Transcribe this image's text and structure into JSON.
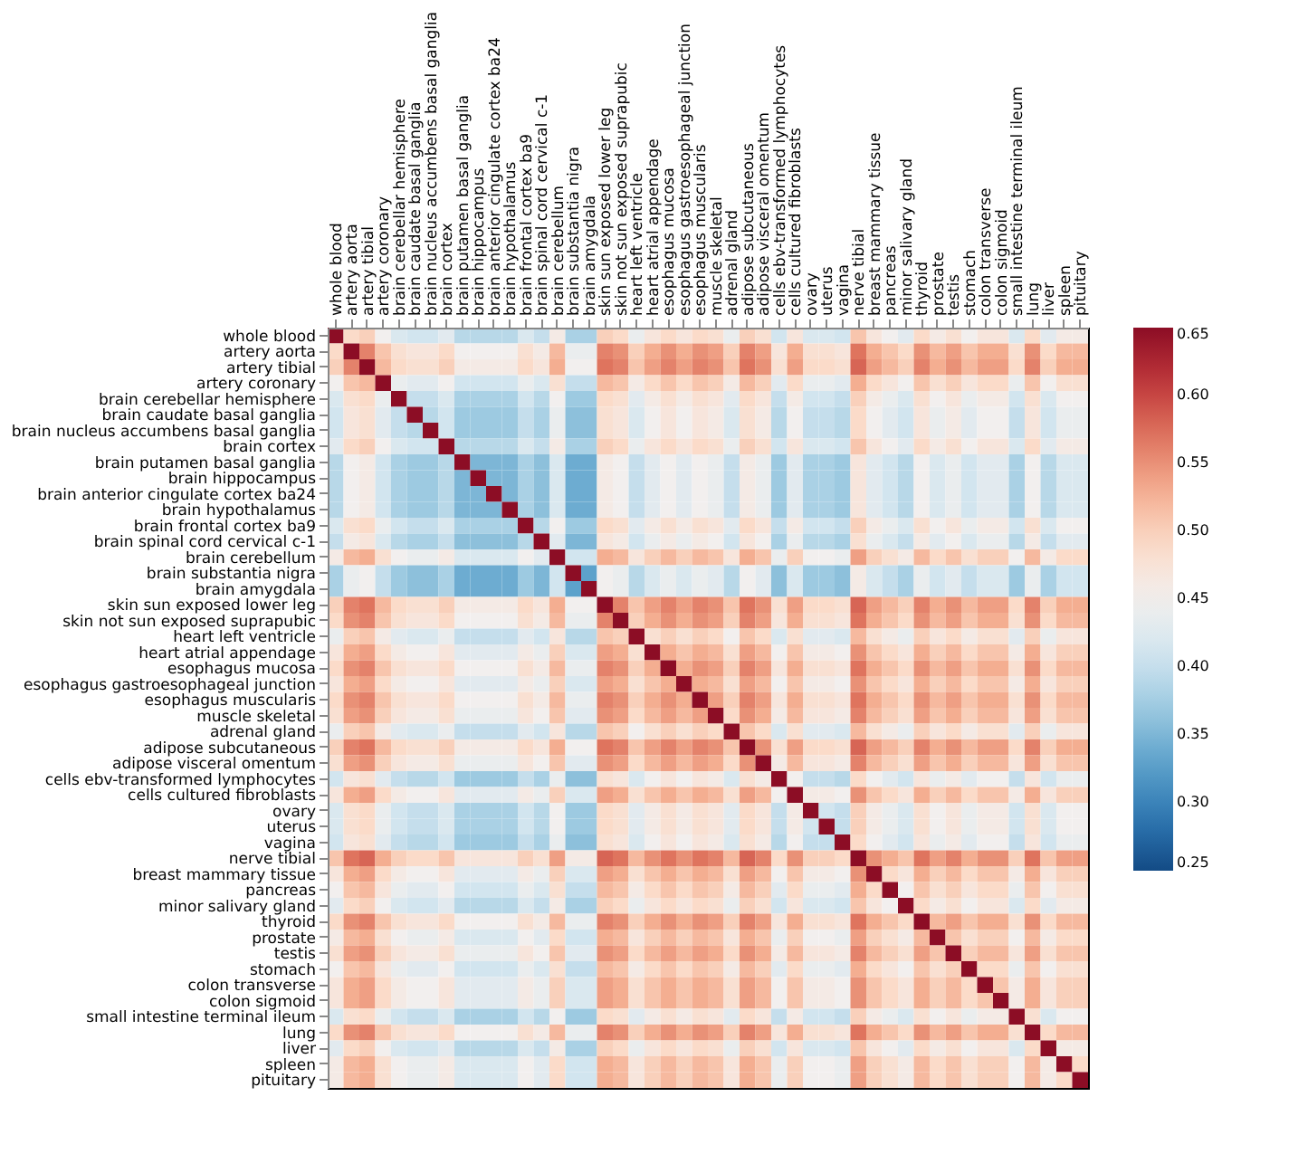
{
  "chart_data": {
    "type": "heatmap",
    "categories": [
      "whole blood",
      "artery aorta",
      "artery tibial",
      "artery coronary",
      "brain cerebellar hemisphere",
      "brain caudate basal ganglia",
      "brain nucleus accumbens basal ganglia",
      "brain cortex",
      "brain putamen basal ganglia",
      "brain hippocampus",
      "brain anterior cingulate cortex ba24",
      "brain hypothalamus",
      "brain frontal cortex ba9",
      "brain spinal cord cervical c-1",
      "brain cerebellum",
      "brain substantia nigra",
      "brain amygdala",
      "skin sun exposed lower leg",
      "skin not sun exposed suprapubic",
      "heart left ventricle",
      "heart atrial appendage",
      "esophagus mucosa",
      "esophagus gastroesophageal junction",
      "esophagus muscularis",
      "muscle skeletal",
      "adrenal gland",
      "adipose subcutaneous",
      "adipose visceral omentum",
      "cells ebv-transformed lymphocytes",
      "cells cultured fibroblasts",
      "ovary",
      "uterus",
      "vagina",
      "nerve tibial",
      "breast mammary tissue",
      "pancreas",
      "minor salivary gland",
      "thyroid",
      "prostate",
      "testis",
      "stomach",
      "colon transverse",
      "colon sigmoid",
      "small intestine terminal ileum",
      "lung",
      "liver",
      "spleen",
      "pituitary"
    ],
    "y_categories": [
      "whole blood",
      "artery aorta",
      "artery tibial",
      "artery coronary",
      "brain cerebellar hemisphere",
      "brain caudate basal ganglia",
      "brain nucleus accumbens basal ganglia",
      "brain cortex",
      "brain putamen basal ganglia",
      "brain hippocampus",
      "brain anterior cingulate cortex ba24",
      "brain hypothalamus",
      "brain frontal cortex ba9",
      "brain spinal cord cervical c-1",
      "brain cerebellum",
      "brain substantia nigra",
      "brain amygdala",
      "skin sun exposed lower leg",
      "skin not sun exposed suprapubic",
      "heart left ventricle",
      "heart atrial appendage",
      "esophagus mucosa",
      "esophagus gastroesophageal junction",
      "esophagus muscularis",
      "muscle skeletal",
      "adrenal gland",
      "adipose subcutaneous",
      "adipose visceral omentum",
      "cells ebv-transformed lymphocytes",
      "cells cultured fibroblasts",
      "ovary",
      "uterus",
      "vagina",
      "nerve tibial",
      "breast mammary tissue",
      "pancreas",
      "minor salivary gland",
      "thyroid",
      "prostate",
      "testis",
      "stomach",
      "colon transverse",
      "colon sigmoid",
      "small intestine terminal ileum",
      "lung",
      "liver",
      "spleen",
      "pituitary"
    ],
    "clim": [
      0.25,
      0.65
    ],
    "cticks": [
      0.25,
      {
        "value": 0.3,
        "label": "0.30"
      },
      0.35,
      {
        "value": 0.4,
        "label": "0.40"
      },
      0.45,
      {
        "value": 0.5,
        "label": "0.50"
      },
      0.55,
      {
        "value": 0.6,
        "label": "0.60"
      },
      0.65
    ],
    "cells": [
      [
        0.65,
        0.49,
        0.5,
        0.45,
        0.42,
        0.41,
        0.41,
        0.43,
        0.39,
        0.39,
        0.39,
        0.39,
        0.42,
        0.4,
        0.46,
        0.38,
        0.38,
        0.5,
        0.49,
        0.44,
        0.47,
        0.49,
        0.47,
        0.49,
        0.48,
        0.44,
        0.5,
        0.48,
        0.41,
        0.47,
        0.42,
        0.42,
        0.41,
        0.51,
        0.47,
        0.45,
        0.43,
        0.49,
        0.46,
        0.48,
        0.45,
        0.47,
        0.47,
        0.42,
        0.49,
        0.43,
        0.46,
        0.46
      ],
      [
        0.49,
        0.65,
        0.56,
        0.51,
        0.48,
        0.47,
        0.47,
        0.49,
        0.45,
        0.45,
        0.45,
        0.45,
        0.48,
        0.46,
        0.52,
        0.44,
        0.44,
        0.56,
        0.55,
        0.5,
        0.53,
        0.55,
        0.53,
        0.55,
        0.54,
        0.5,
        0.56,
        0.54,
        0.47,
        0.53,
        0.48,
        0.48,
        0.47,
        0.57,
        0.53,
        0.51,
        0.49,
        0.55,
        0.52,
        0.54,
        0.51,
        0.53,
        0.53,
        0.48,
        0.55,
        0.49,
        0.52,
        0.52
      ],
      [
        0.5,
        0.56,
        0.65,
        0.52,
        0.49,
        0.48,
        0.48,
        0.5,
        0.46,
        0.46,
        0.46,
        0.46,
        0.49,
        0.47,
        0.53,
        0.45,
        0.45,
        0.57,
        0.56,
        0.51,
        0.54,
        0.56,
        0.54,
        0.56,
        0.55,
        0.51,
        0.57,
        0.55,
        0.48,
        0.54,
        0.49,
        0.49,
        0.48,
        0.58,
        0.54,
        0.52,
        0.5,
        0.56,
        0.53,
        0.55,
        0.52,
        0.54,
        0.54,
        0.49,
        0.56,
        0.5,
        0.53,
        0.53
      ],
      [
        0.45,
        0.51,
        0.52,
        0.65,
        0.44,
        0.43,
        0.43,
        0.45,
        0.41,
        0.41,
        0.41,
        0.41,
        0.44,
        0.42,
        0.48,
        0.4,
        0.4,
        0.52,
        0.51,
        0.46,
        0.49,
        0.51,
        0.49,
        0.51,
        0.5,
        0.46,
        0.52,
        0.5,
        0.43,
        0.49,
        0.44,
        0.44,
        0.43,
        0.53,
        0.49,
        0.47,
        0.45,
        0.51,
        0.48,
        0.5,
        0.47,
        0.49,
        0.49,
        0.44,
        0.51,
        0.45,
        0.48,
        0.48
      ],
      [
        0.42,
        0.48,
        0.49,
        0.44,
        0.65,
        0.4,
        0.4,
        0.42,
        0.38,
        0.38,
        0.38,
        0.38,
        0.41,
        0.39,
        0.45,
        0.37,
        0.37,
        0.49,
        0.48,
        0.43,
        0.46,
        0.48,
        0.46,
        0.48,
        0.47,
        0.43,
        0.49,
        0.47,
        0.4,
        0.46,
        0.41,
        0.41,
        0.4,
        0.5,
        0.46,
        0.44,
        0.42,
        0.48,
        0.45,
        0.47,
        0.44,
        0.46,
        0.46,
        0.41,
        0.48,
        0.42,
        0.45,
        0.45
      ],
      [
        0.41,
        0.47,
        0.48,
        0.43,
        0.4,
        0.65,
        0.39,
        0.41,
        0.37,
        0.37,
        0.37,
        0.37,
        0.4,
        0.38,
        0.44,
        0.36,
        0.36,
        0.48,
        0.47,
        0.42,
        0.45,
        0.47,
        0.45,
        0.47,
        0.46,
        0.42,
        0.48,
        0.46,
        0.39,
        0.45,
        0.4,
        0.4,
        0.39,
        0.49,
        0.45,
        0.43,
        0.41,
        0.47,
        0.44,
        0.46,
        0.43,
        0.45,
        0.45,
        0.4,
        0.47,
        0.41,
        0.44,
        0.44
      ],
      [
        0.41,
        0.47,
        0.48,
        0.43,
        0.4,
        0.39,
        0.65,
        0.41,
        0.37,
        0.37,
        0.37,
        0.37,
        0.4,
        0.38,
        0.44,
        0.36,
        0.36,
        0.48,
        0.47,
        0.42,
        0.45,
        0.47,
        0.45,
        0.47,
        0.46,
        0.42,
        0.48,
        0.46,
        0.39,
        0.45,
        0.4,
        0.4,
        0.39,
        0.49,
        0.45,
        0.43,
        0.41,
        0.47,
        0.44,
        0.46,
        0.43,
        0.45,
        0.45,
        0.4,
        0.47,
        0.41,
        0.44,
        0.44
      ],
      [
        0.43,
        0.49,
        0.5,
        0.45,
        0.42,
        0.41,
        0.41,
        0.65,
        0.39,
        0.39,
        0.39,
        0.39,
        0.42,
        0.4,
        0.46,
        0.38,
        0.38,
        0.5,
        0.49,
        0.44,
        0.47,
        0.49,
        0.47,
        0.49,
        0.48,
        0.44,
        0.5,
        0.48,
        0.41,
        0.47,
        0.42,
        0.42,
        0.41,
        0.51,
        0.47,
        0.45,
        0.43,
        0.49,
        0.46,
        0.48,
        0.45,
        0.47,
        0.47,
        0.42,
        0.49,
        0.43,
        0.46,
        0.46
      ],
      [
        0.39,
        0.45,
        0.46,
        0.41,
        0.38,
        0.37,
        0.37,
        0.39,
        0.65,
        0.35,
        0.35,
        0.35,
        0.38,
        0.36,
        0.42,
        0.34,
        0.34,
        0.46,
        0.45,
        0.4,
        0.43,
        0.45,
        0.43,
        0.45,
        0.44,
        0.4,
        0.46,
        0.44,
        0.37,
        0.43,
        0.38,
        0.38,
        0.37,
        0.47,
        0.43,
        0.41,
        0.39,
        0.45,
        0.42,
        0.44,
        0.41,
        0.43,
        0.43,
        0.38,
        0.45,
        0.39,
        0.42,
        0.42
      ],
      [
        0.39,
        0.45,
        0.46,
        0.41,
        0.38,
        0.37,
        0.37,
        0.39,
        0.35,
        0.65,
        0.35,
        0.35,
        0.38,
        0.36,
        0.42,
        0.34,
        0.34,
        0.46,
        0.45,
        0.4,
        0.43,
        0.45,
        0.43,
        0.45,
        0.44,
        0.4,
        0.46,
        0.44,
        0.37,
        0.43,
        0.38,
        0.38,
        0.37,
        0.47,
        0.43,
        0.41,
        0.39,
        0.45,
        0.42,
        0.44,
        0.41,
        0.43,
        0.43,
        0.38,
        0.45,
        0.39,
        0.42,
        0.42
      ],
      [
        0.39,
        0.45,
        0.46,
        0.41,
        0.38,
        0.37,
        0.37,
        0.39,
        0.35,
        0.35,
        0.65,
        0.35,
        0.38,
        0.36,
        0.42,
        0.34,
        0.34,
        0.46,
        0.45,
        0.4,
        0.43,
        0.45,
        0.43,
        0.45,
        0.44,
        0.4,
        0.46,
        0.44,
        0.37,
        0.43,
        0.38,
        0.38,
        0.37,
        0.47,
        0.43,
        0.41,
        0.39,
        0.45,
        0.42,
        0.44,
        0.41,
        0.43,
        0.43,
        0.38,
        0.45,
        0.39,
        0.42,
        0.42
      ],
      [
        0.39,
        0.45,
        0.46,
        0.41,
        0.38,
        0.37,
        0.37,
        0.39,
        0.35,
        0.35,
        0.35,
        0.65,
        0.38,
        0.36,
        0.42,
        0.34,
        0.34,
        0.46,
        0.45,
        0.4,
        0.43,
        0.45,
        0.43,
        0.45,
        0.44,
        0.4,
        0.46,
        0.44,
        0.37,
        0.43,
        0.38,
        0.38,
        0.37,
        0.47,
        0.43,
        0.41,
        0.39,
        0.45,
        0.42,
        0.44,
        0.41,
        0.43,
        0.43,
        0.38,
        0.45,
        0.39,
        0.42,
        0.42
      ],
      [
        0.42,
        0.48,
        0.49,
        0.44,
        0.41,
        0.4,
        0.4,
        0.42,
        0.38,
        0.38,
        0.38,
        0.38,
        0.65,
        0.39,
        0.45,
        0.37,
        0.37,
        0.49,
        0.48,
        0.43,
        0.46,
        0.48,
        0.46,
        0.48,
        0.47,
        0.43,
        0.49,
        0.47,
        0.4,
        0.46,
        0.41,
        0.41,
        0.4,
        0.5,
        0.46,
        0.44,
        0.42,
        0.48,
        0.45,
        0.47,
        0.44,
        0.46,
        0.46,
        0.41,
        0.48,
        0.42,
        0.45,
        0.45
      ],
      [
        0.4,
        0.46,
        0.47,
        0.42,
        0.39,
        0.38,
        0.38,
        0.4,
        0.36,
        0.36,
        0.36,
        0.36,
        0.39,
        0.65,
        0.43,
        0.35,
        0.35,
        0.47,
        0.46,
        0.41,
        0.44,
        0.46,
        0.44,
        0.46,
        0.45,
        0.41,
        0.47,
        0.45,
        0.38,
        0.44,
        0.39,
        0.39,
        0.38,
        0.48,
        0.44,
        0.42,
        0.4,
        0.46,
        0.43,
        0.45,
        0.42,
        0.44,
        0.44,
        0.39,
        0.46,
        0.4,
        0.43,
        0.43
      ],
      [
        0.46,
        0.52,
        0.53,
        0.48,
        0.45,
        0.44,
        0.44,
        0.46,
        0.42,
        0.42,
        0.42,
        0.42,
        0.45,
        0.43,
        0.65,
        0.41,
        0.41,
        0.53,
        0.52,
        0.47,
        0.5,
        0.52,
        0.5,
        0.52,
        0.51,
        0.47,
        0.53,
        0.51,
        0.44,
        0.5,
        0.45,
        0.45,
        0.44,
        0.54,
        0.5,
        0.48,
        0.46,
        0.52,
        0.49,
        0.51,
        0.48,
        0.5,
        0.5,
        0.45,
        0.52,
        0.46,
        0.49,
        0.49
      ],
      [
        0.38,
        0.44,
        0.45,
        0.4,
        0.37,
        0.36,
        0.36,
        0.38,
        0.34,
        0.34,
        0.34,
        0.34,
        0.37,
        0.35,
        0.41,
        0.65,
        0.33,
        0.45,
        0.44,
        0.39,
        0.42,
        0.44,
        0.42,
        0.44,
        0.43,
        0.39,
        0.45,
        0.43,
        0.36,
        0.42,
        0.37,
        0.37,
        0.36,
        0.46,
        0.42,
        0.4,
        0.38,
        0.44,
        0.41,
        0.43,
        0.4,
        0.42,
        0.42,
        0.37,
        0.44,
        0.38,
        0.41,
        0.41
      ],
      [
        0.38,
        0.44,
        0.45,
        0.4,
        0.37,
        0.36,
        0.36,
        0.38,
        0.34,
        0.34,
        0.34,
        0.34,
        0.37,
        0.35,
        0.41,
        0.33,
        0.65,
        0.45,
        0.44,
        0.39,
        0.42,
        0.44,
        0.42,
        0.44,
        0.43,
        0.39,
        0.45,
        0.43,
        0.36,
        0.42,
        0.37,
        0.37,
        0.36,
        0.46,
        0.42,
        0.4,
        0.38,
        0.44,
        0.41,
        0.43,
        0.4,
        0.42,
        0.42,
        0.37,
        0.44,
        0.38,
        0.41,
        0.41
      ],
      [
        0.5,
        0.56,
        0.57,
        0.52,
        0.49,
        0.48,
        0.48,
        0.5,
        0.46,
        0.46,
        0.46,
        0.46,
        0.49,
        0.47,
        0.53,
        0.45,
        0.45,
        0.65,
        0.56,
        0.51,
        0.54,
        0.56,
        0.54,
        0.56,
        0.55,
        0.51,
        0.57,
        0.55,
        0.48,
        0.54,
        0.49,
        0.49,
        0.48,
        0.58,
        0.54,
        0.52,
        0.5,
        0.56,
        0.53,
        0.55,
        0.52,
        0.54,
        0.54,
        0.49,
        0.56,
        0.5,
        0.53,
        0.53
      ],
      [
        0.49,
        0.55,
        0.56,
        0.51,
        0.48,
        0.47,
        0.47,
        0.49,
        0.45,
        0.45,
        0.45,
        0.45,
        0.48,
        0.46,
        0.52,
        0.44,
        0.44,
        0.56,
        0.65,
        0.5,
        0.53,
        0.55,
        0.53,
        0.55,
        0.54,
        0.5,
        0.56,
        0.54,
        0.47,
        0.53,
        0.48,
        0.48,
        0.47,
        0.57,
        0.53,
        0.51,
        0.49,
        0.55,
        0.52,
        0.54,
        0.51,
        0.53,
        0.53,
        0.48,
        0.55,
        0.49,
        0.52,
        0.52
      ],
      [
        0.44,
        0.5,
        0.51,
        0.46,
        0.43,
        0.42,
        0.42,
        0.44,
        0.4,
        0.4,
        0.4,
        0.4,
        0.43,
        0.41,
        0.47,
        0.39,
        0.39,
        0.51,
        0.5,
        0.65,
        0.48,
        0.5,
        0.48,
        0.5,
        0.49,
        0.45,
        0.51,
        0.49,
        0.42,
        0.48,
        0.43,
        0.43,
        0.42,
        0.52,
        0.48,
        0.46,
        0.44,
        0.5,
        0.47,
        0.49,
        0.46,
        0.48,
        0.48,
        0.43,
        0.5,
        0.44,
        0.47,
        0.47
      ],
      [
        0.47,
        0.53,
        0.54,
        0.49,
        0.46,
        0.45,
        0.45,
        0.47,
        0.43,
        0.43,
        0.43,
        0.43,
        0.46,
        0.44,
        0.5,
        0.42,
        0.42,
        0.54,
        0.53,
        0.48,
        0.65,
        0.53,
        0.51,
        0.53,
        0.52,
        0.48,
        0.54,
        0.52,
        0.45,
        0.51,
        0.46,
        0.46,
        0.45,
        0.55,
        0.51,
        0.49,
        0.47,
        0.53,
        0.5,
        0.52,
        0.49,
        0.51,
        0.51,
        0.46,
        0.53,
        0.47,
        0.5,
        0.5
      ],
      [
        0.49,
        0.55,
        0.56,
        0.51,
        0.48,
        0.47,
        0.47,
        0.49,
        0.45,
        0.45,
        0.45,
        0.45,
        0.48,
        0.46,
        0.52,
        0.44,
        0.44,
        0.56,
        0.55,
        0.5,
        0.53,
        0.65,
        0.53,
        0.55,
        0.54,
        0.5,
        0.56,
        0.54,
        0.47,
        0.53,
        0.48,
        0.48,
        0.47,
        0.57,
        0.53,
        0.51,
        0.49,
        0.55,
        0.52,
        0.54,
        0.51,
        0.53,
        0.53,
        0.48,
        0.55,
        0.49,
        0.52,
        0.52
      ],
      [
        0.47,
        0.53,
        0.54,
        0.49,
        0.46,
        0.45,
        0.45,
        0.47,
        0.43,
        0.43,
        0.43,
        0.43,
        0.46,
        0.44,
        0.5,
        0.42,
        0.42,
        0.54,
        0.53,
        0.48,
        0.51,
        0.53,
        0.65,
        0.53,
        0.52,
        0.48,
        0.54,
        0.52,
        0.45,
        0.51,
        0.46,
        0.46,
        0.45,
        0.55,
        0.51,
        0.49,
        0.47,
        0.53,
        0.5,
        0.52,
        0.49,
        0.51,
        0.51,
        0.46,
        0.53,
        0.47,
        0.5,
        0.5
      ],
      [
        0.49,
        0.55,
        0.56,
        0.51,
        0.48,
        0.47,
        0.47,
        0.49,
        0.45,
        0.45,
        0.45,
        0.45,
        0.48,
        0.46,
        0.52,
        0.44,
        0.44,
        0.56,
        0.55,
        0.5,
        0.53,
        0.55,
        0.53,
        0.65,
        0.54,
        0.5,
        0.56,
        0.54,
        0.47,
        0.53,
        0.48,
        0.48,
        0.47,
        0.57,
        0.53,
        0.51,
        0.49,
        0.55,
        0.52,
        0.54,
        0.51,
        0.53,
        0.53,
        0.48,
        0.55,
        0.49,
        0.52,
        0.52
      ],
      [
        0.48,
        0.54,
        0.55,
        0.5,
        0.47,
        0.46,
        0.46,
        0.48,
        0.44,
        0.44,
        0.44,
        0.44,
        0.47,
        0.45,
        0.51,
        0.43,
        0.43,
        0.55,
        0.54,
        0.49,
        0.52,
        0.54,
        0.52,
        0.54,
        0.65,
        0.49,
        0.55,
        0.53,
        0.46,
        0.52,
        0.47,
        0.47,
        0.46,
        0.56,
        0.52,
        0.5,
        0.48,
        0.54,
        0.51,
        0.53,
        0.5,
        0.52,
        0.52,
        0.47,
        0.54,
        0.48,
        0.51,
        0.51
      ],
      [
        0.44,
        0.5,
        0.51,
        0.46,
        0.43,
        0.42,
        0.42,
        0.44,
        0.4,
        0.4,
        0.4,
        0.4,
        0.43,
        0.41,
        0.47,
        0.39,
        0.39,
        0.51,
        0.5,
        0.45,
        0.48,
        0.5,
        0.48,
        0.5,
        0.49,
        0.65,
        0.51,
        0.49,
        0.42,
        0.48,
        0.43,
        0.43,
        0.42,
        0.52,
        0.48,
        0.46,
        0.44,
        0.5,
        0.47,
        0.49,
        0.46,
        0.48,
        0.48,
        0.43,
        0.5,
        0.44,
        0.47,
        0.47
      ],
      [
        0.5,
        0.56,
        0.57,
        0.52,
        0.49,
        0.48,
        0.48,
        0.5,
        0.46,
        0.46,
        0.46,
        0.46,
        0.49,
        0.47,
        0.53,
        0.45,
        0.45,
        0.57,
        0.56,
        0.51,
        0.54,
        0.56,
        0.54,
        0.56,
        0.55,
        0.51,
        0.65,
        0.55,
        0.48,
        0.54,
        0.49,
        0.49,
        0.48,
        0.58,
        0.54,
        0.52,
        0.5,
        0.56,
        0.53,
        0.55,
        0.52,
        0.54,
        0.54,
        0.49,
        0.56,
        0.5,
        0.53,
        0.53
      ],
      [
        0.48,
        0.54,
        0.55,
        0.5,
        0.47,
        0.46,
        0.46,
        0.48,
        0.44,
        0.44,
        0.44,
        0.44,
        0.47,
        0.45,
        0.51,
        0.43,
        0.43,
        0.55,
        0.54,
        0.49,
        0.52,
        0.54,
        0.52,
        0.54,
        0.53,
        0.49,
        0.55,
        0.65,
        0.46,
        0.52,
        0.47,
        0.47,
        0.46,
        0.56,
        0.52,
        0.5,
        0.48,
        0.54,
        0.51,
        0.53,
        0.5,
        0.52,
        0.52,
        0.47,
        0.54,
        0.48,
        0.51,
        0.51
      ],
      [
        0.41,
        0.47,
        0.48,
        0.43,
        0.4,
        0.39,
        0.39,
        0.41,
        0.37,
        0.37,
        0.37,
        0.37,
        0.4,
        0.38,
        0.44,
        0.36,
        0.36,
        0.48,
        0.47,
        0.42,
        0.45,
        0.47,
        0.45,
        0.47,
        0.46,
        0.42,
        0.48,
        0.46,
        0.65,
        0.45,
        0.4,
        0.4,
        0.39,
        0.49,
        0.45,
        0.43,
        0.41,
        0.47,
        0.44,
        0.46,
        0.43,
        0.45,
        0.45,
        0.4,
        0.47,
        0.41,
        0.44,
        0.44
      ],
      [
        0.47,
        0.53,
        0.54,
        0.49,
        0.46,
        0.45,
        0.45,
        0.47,
        0.43,
        0.43,
        0.43,
        0.43,
        0.46,
        0.44,
        0.5,
        0.42,
        0.42,
        0.54,
        0.53,
        0.48,
        0.51,
        0.53,
        0.51,
        0.53,
        0.52,
        0.48,
        0.54,
        0.52,
        0.45,
        0.65,
        0.46,
        0.46,
        0.45,
        0.55,
        0.51,
        0.49,
        0.47,
        0.53,
        0.5,
        0.52,
        0.49,
        0.51,
        0.51,
        0.46,
        0.53,
        0.47,
        0.5,
        0.5
      ],
      [
        0.42,
        0.48,
        0.49,
        0.44,
        0.41,
        0.4,
        0.4,
        0.42,
        0.38,
        0.38,
        0.38,
        0.38,
        0.41,
        0.39,
        0.45,
        0.37,
        0.37,
        0.49,
        0.48,
        0.43,
        0.46,
        0.48,
        0.46,
        0.48,
        0.47,
        0.43,
        0.49,
        0.47,
        0.4,
        0.46,
        0.65,
        0.41,
        0.4,
        0.5,
        0.46,
        0.44,
        0.42,
        0.48,
        0.45,
        0.47,
        0.44,
        0.46,
        0.46,
        0.41,
        0.48,
        0.42,
        0.45,
        0.45
      ],
      [
        0.42,
        0.48,
        0.49,
        0.44,
        0.41,
        0.4,
        0.4,
        0.42,
        0.38,
        0.38,
        0.38,
        0.38,
        0.41,
        0.39,
        0.45,
        0.37,
        0.37,
        0.49,
        0.48,
        0.43,
        0.46,
        0.48,
        0.46,
        0.48,
        0.47,
        0.43,
        0.49,
        0.47,
        0.4,
        0.46,
        0.41,
        0.65,
        0.4,
        0.5,
        0.46,
        0.44,
        0.42,
        0.48,
        0.45,
        0.47,
        0.44,
        0.46,
        0.46,
        0.41,
        0.48,
        0.42,
        0.45,
        0.45
      ],
      [
        0.41,
        0.47,
        0.48,
        0.43,
        0.4,
        0.39,
        0.39,
        0.41,
        0.37,
        0.37,
        0.37,
        0.37,
        0.4,
        0.38,
        0.44,
        0.36,
        0.36,
        0.48,
        0.47,
        0.42,
        0.45,
        0.47,
        0.45,
        0.47,
        0.46,
        0.42,
        0.48,
        0.46,
        0.39,
        0.45,
        0.4,
        0.4,
        0.65,
        0.49,
        0.45,
        0.43,
        0.41,
        0.47,
        0.44,
        0.46,
        0.43,
        0.45,
        0.45,
        0.4,
        0.47,
        0.41,
        0.44,
        0.44
      ],
      [
        0.51,
        0.57,
        0.58,
        0.53,
        0.5,
        0.49,
        0.49,
        0.51,
        0.47,
        0.47,
        0.47,
        0.47,
        0.5,
        0.48,
        0.54,
        0.46,
        0.46,
        0.58,
        0.57,
        0.52,
        0.55,
        0.57,
        0.55,
        0.57,
        0.56,
        0.52,
        0.58,
        0.56,
        0.49,
        0.55,
        0.5,
        0.5,
        0.49,
        0.65,
        0.55,
        0.53,
        0.51,
        0.57,
        0.54,
        0.56,
        0.53,
        0.55,
        0.55,
        0.5,
        0.57,
        0.51,
        0.54,
        0.54
      ],
      [
        0.47,
        0.53,
        0.54,
        0.49,
        0.46,
        0.45,
        0.45,
        0.47,
        0.43,
        0.43,
        0.43,
        0.43,
        0.46,
        0.44,
        0.5,
        0.42,
        0.42,
        0.54,
        0.53,
        0.48,
        0.51,
        0.53,
        0.51,
        0.53,
        0.52,
        0.48,
        0.54,
        0.52,
        0.45,
        0.51,
        0.46,
        0.46,
        0.45,
        0.55,
        0.65,
        0.49,
        0.47,
        0.53,
        0.5,
        0.52,
        0.49,
        0.51,
        0.51,
        0.46,
        0.53,
        0.47,
        0.5,
        0.5
      ],
      [
        0.45,
        0.51,
        0.52,
        0.47,
        0.44,
        0.43,
        0.43,
        0.45,
        0.41,
        0.41,
        0.41,
        0.41,
        0.44,
        0.42,
        0.48,
        0.4,
        0.4,
        0.52,
        0.51,
        0.46,
        0.49,
        0.51,
        0.49,
        0.51,
        0.5,
        0.46,
        0.52,
        0.5,
        0.43,
        0.49,
        0.44,
        0.44,
        0.43,
        0.53,
        0.49,
        0.65,
        0.45,
        0.51,
        0.48,
        0.5,
        0.47,
        0.49,
        0.49,
        0.44,
        0.51,
        0.45,
        0.48,
        0.48
      ],
      [
        0.43,
        0.49,
        0.5,
        0.45,
        0.42,
        0.41,
        0.41,
        0.43,
        0.39,
        0.39,
        0.39,
        0.39,
        0.42,
        0.4,
        0.46,
        0.38,
        0.38,
        0.5,
        0.49,
        0.44,
        0.47,
        0.49,
        0.47,
        0.49,
        0.48,
        0.44,
        0.5,
        0.48,
        0.41,
        0.47,
        0.42,
        0.42,
        0.41,
        0.51,
        0.47,
        0.45,
        0.65,
        0.49,
        0.46,
        0.48,
        0.45,
        0.47,
        0.47,
        0.42,
        0.49,
        0.43,
        0.46,
        0.46
      ],
      [
        0.49,
        0.55,
        0.56,
        0.51,
        0.48,
        0.47,
        0.47,
        0.49,
        0.45,
        0.45,
        0.45,
        0.45,
        0.48,
        0.46,
        0.52,
        0.44,
        0.44,
        0.56,
        0.55,
        0.5,
        0.53,
        0.55,
        0.53,
        0.55,
        0.54,
        0.5,
        0.56,
        0.54,
        0.47,
        0.53,
        0.48,
        0.48,
        0.47,
        0.57,
        0.53,
        0.51,
        0.49,
        0.65,
        0.52,
        0.54,
        0.51,
        0.53,
        0.53,
        0.48,
        0.55,
        0.49,
        0.52,
        0.52
      ],
      [
        0.46,
        0.52,
        0.53,
        0.48,
        0.45,
        0.44,
        0.44,
        0.46,
        0.42,
        0.42,
        0.42,
        0.42,
        0.45,
        0.43,
        0.49,
        0.41,
        0.41,
        0.53,
        0.52,
        0.47,
        0.5,
        0.52,
        0.5,
        0.52,
        0.51,
        0.47,
        0.53,
        0.51,
        0.44,
        0.5,
        0.45,
        0.45,
        0.44,
        0.54,
        0.5,
        0.48,
        0.46,
        0.52,
        0.65,
        0.51,
        0.48,
        0.5,
        0.5,
        0.45,
        0.52,
        0.46,
        0.49,
        0.49
      ],
      [
        0.48,
        0.54,
        0.55,
        0.5,
        0.47,
        0.46,
        0.46,
        0.48,
        0.44,
        0.44,
        0.44,
        0.44,
        0.47,
        0.45,
        0.51,
        0.43,
        0.43,
        0.55,
        0.54,
        0.49,
        0.52,
        0.54,
        0.52,
        0.54,
        0.53,
        0.49,
        0.55,
        0.53,
        0.46,
        0.52,
        0.47,
        0.47,
        0.46,
        0.56,
        0.52,
        0.5,
        0.48,
        0.54,
        0.51,
        0.65,
        0.5,
        0.52,
        0.52,
        0.47,
        0.54,
        0.48,
        0.51,
        0.51
      ],
      [
        0.45,
        0.51,
        0.52,
        0.47,
        0.44,
        0.43,
        0.43,
        0.45,
        0.41,
        0.41,
        0.41,
        0.41,
        0.44,
        0.42,
        0.48,
        0.4,
        0.4,
        0.52,
        0.51,
        0.46,
        0.49,
        0.51,
        0.49,
        0.51,
        0.5,
        0.46,
        0.52,
        0.5,
        0.43,
        0.49,
        0.44,
        0.44,
        0.43,
        0.53,
        0.49,
        0.47,
        0.45,
        0.51,
        0.48,
        0.5,
        0.65,
        0.49,
        0.49,
        0.44,
        0.51,
        0.45,
        0.48,
        0.48
      ],
      [
        0.47,
        0.53,
        0.54,
        0.49,
        0.46,
        0.45,
        0.45,
        0.47,
        0.43,
        0.43,
        0.43,
        0.43,
        0.46,
        0.44,
        0.5,
        0.42,
        0.42,
        0.54,
        0.53,
        0.48,
        0.51,
        0.53,
        0.51,
        0.53,
        0.52,
        0.48,
        0.54,
        0.52,
        0.45,
        0.51,
        0.46,
        0.46,
        0.45,
        0.55,
        0.51,
        0.49,
        0.47,
        0.53,
        0.5,
        0.52,
        0.49,
        0.65,
        0.51,
        0.46,
        0.53,
        0.47,
        0.5,
        0.5
      ],
      [
        0.47,
        0.53,
        0.54,
        0.49,
        0.46,
        0.45,
        0.45,
        0.47,
        0.43,
        0.43,
        0.43,
        0.43,
        0.46,
        0.44,
        0.5,
        0.42,
        0.42,
        0.54,
        0.53,
        0.48,
        0.51,
        0.53,
        0.51,
        0.53,
        0.52,
        0.48,
        0.54,
        0.52,
        0.45,
        0.51,
        0.46,
        0.46,
        0.45,
        0.55,
        0.51,
        0.49,
        0.47,
        0.53,
        0.5,
        0.52,
        0.49,
        0.51,
        0.65,
        0.46,
        0.53,
        0.47,
        0.5,
        0.5
      ],
      [
        0.42,
        0.48,
        0.49,
        0.44,
        0.41,
        0.4,
        0.4,
        0.42,
        0.38,
        0.38,
        0.38,
        0.38,
        0.41,
        0.39,
        0.45,
        0.37,
        0.37,
        0.49,
        0.48,
        0.43,
        0.46,
        0.48,
        0.46,
        0.48,
        0.47,
        0.43,
        0.49,
        0.47,
        0.4,
        0.46,
        0.41,
        0.41,
        0.4,
        0.5,
        0.46,
        0.44,
        0.42,
        0.48,
        0.45,
        0.47,
        0.44,
        0.46,
        0.46,
        0.65,
        0.48,
        0.42,
        0.45,
        0.45
      ],
      [
        0.49,
        0.55,
        0.56,
        0.51,
        0.48,
        0.47,
        0.47,
        0.49,
        0.45,
        0.45,
        0.45,
        0.45,
        0.48,
        0.46,
        0.52,
        0.44,
        0.44,
        0.56,
        0.55,
        0.5,
        0.53,
        0.55,
        0.53,
        0.55,
        0.54,
        0.5,
        0.56,
        0.54,
        0.47,
        0.53,
        0.48,
        0.48,
        0.47,
        0.57,
        0.53,
        0.51,
        0.49,
        0.55,
        0.52,
        0.54,
        0.51,
        0.53,
        0.53,
        0.48,
        0.65,
        0.49,
        0.52,
        0.52
      ],
      [
        0.43,
        0.49,
        0.5,
        0.45,
        0.42,
        0.41,
        0.41,
        0.43,
        0.39,
        0.39,
        0.39,
        0.39,
        0.42,
        0.4,
        0.46,
        0.38,
        0.38,
        0.5,
        0.49,
        0.44,
        0.47,
        0.49,
        0.47,
        0.49,
        0.48,
        0.44,
        0.5,
        0.48,
        0.41,
        0.47,
        0.42,
        0.42,
        0.41,
        0.51,
        0.47,
        0.45,
        0.43,
        0.49,
        0.46,
        0.48,
        0.45,
        0.47,
        0.47,
        0.42,
        0.49,
        0.65,
        0.46,
        0.46
      ],
      [
        0.46,
        0.52,
        0.53,
        0.48,
        0.45,
        0.44,
        0.44,
        0.46,
        0.42,
        0.42,
        0.42,
        0.42,
        0.45,
        0.43,
        0.49,
        0.41,
        0.41,
        0.53,
        0.52,
        0.47,
        0.5,
        0.52,
        0.5,
        0.52,
        0.51,
        0.47,
        0.53,
        0.51,
        0.44,
        0.5,
        0.45,
        0.45,
        0.44,
        0.54,
        0.5,
        0.48,
        0.46,
        0.52,
        0.49,
        0.51,
        0.48,
        0.5,
        0.5,
        0.45,
        0.52,
        0.46,
        0.65,
        0.49
      ],
      [
        0.46,
        0.52,
        0.53,
        0.48,
        0.45,
        0.44,
        0.44,
        0.46,
        0.42,
        0.42,
        0.42,
        0.42,
        0.45,
        0.43,
        0.49,
        0.41,
        0.41,
        0.53,
        0.52,
        0.47,
        0.5,
        0.52,
        0.5,
        0.52,
        0.51,
        0.47,
        0.53,
        0.51,
        0.44,
        0.5,
        0.45,
        0.45,
        0.44,
        0.54,
        0.5,
        0.48,
        0.46,
        0.52,
        0.49,
        0.51,
        0.48,
        0.5,
        0.5,
        0.45,
        0.52,
        0.46,
        0.49,
        0.65
      ]
    ]
  }
}
